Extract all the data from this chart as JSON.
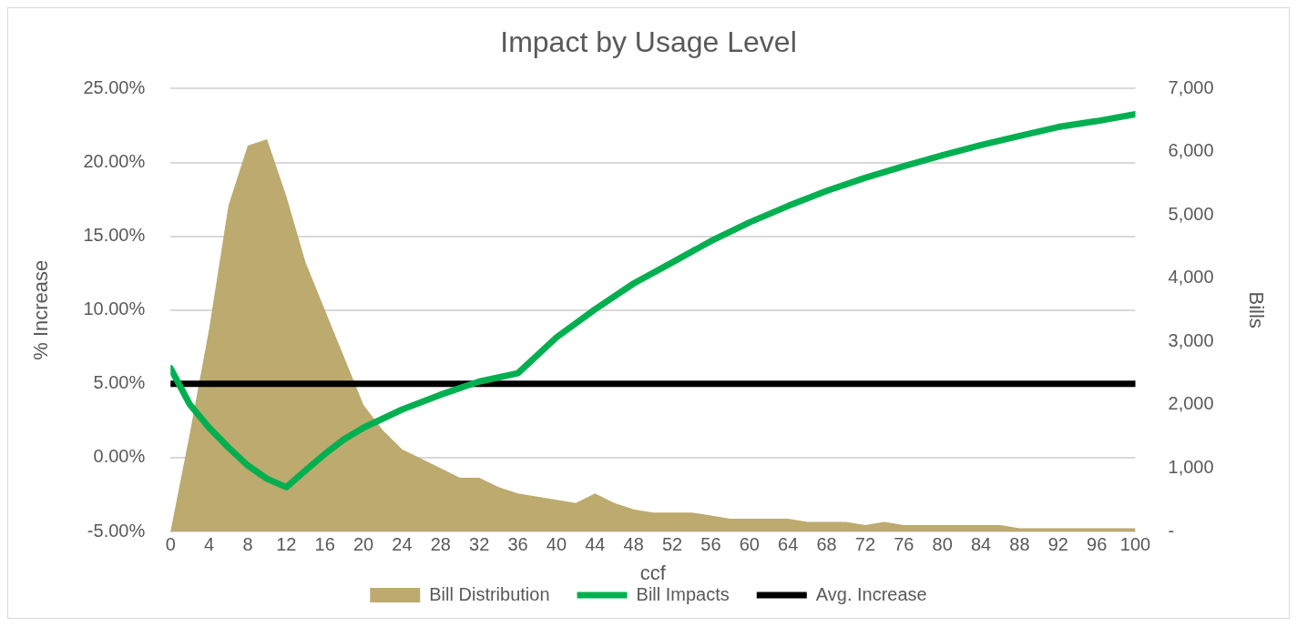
{
  "chart_data": {
    "type": "area",
    "title": "Impact by Usage Level",
    "xlabel": "ccf",
    "ylabel": "% Increase",
    "y2label": "Bills",
    "xlim": [
      0,
      100
    ],
    "xticks": [
      0,
      4,
      8,
      12,
      16,
      20,
      24,
      28,
      32,
      36,
      40,
      44,
      48,
      52,
      56,
      60,
      64,
      68,
      72,
      76,
      80,
      84,
      88,
      92,
      96,
      100
    ],
    "ylim": [
      -5,
      25
    ],
    "yticks": [
      {
        "value": -5,
        "label": "-5.00%"
      },
      {
        "value": 0,
        "label": "0.00%"
      },
      {
        "value": 5,
        "label": "5.00%"
      },
      {
        "value": 10,
        "label": "10.00%"
      },
      {
        "value": 15,
        "label": "15.00%"
      },
      {
        "value": 20,
        "label": "20.00%"
      },
      {
        "value": 25,
        "label": "25.00%"
      }
    ],
    "y2lim": [
      0,
      7000
    ],
    "y2ticks": [
      {
        "value": 0,
        "label": "-"
      },
      {
        "value": 1000,
        "label": "1,000"
      },
      {
        "value": 2000,
        "label": "2,000"
      },
      {
        "value": 3000,
        "label": "3,000"
      },
      {
        "value": 4000,
        "label": "4,000"
      },
      {
        "value": 5000,
        "label": "5,000"
      },
      {
        "value": 6000,
        "label": "6,000"
      },
      {
        "value": 7000,
        "label": "7,000"
      }
    ],
    "grid": "y",
    "legend": "bottom",
    "series": [
      {
        "name": "Bill Distribution",
        "type": "area",
        "axis": "y2",
        "color": "#bcaa6e",
        "x": [
          0,
          2,
          4,
          6,
          8,
          10,
          12,
          14,
          16,
          18,
          20,
          22,
          24,
          26,
          28,
          30,
          32,
          34,
          36,
          38,
          40,
          42,
          44,
          46,
          48,
          50,
          52,
          54,
          56,
          58,
          60,
          62,
          64,
          66,
          68,
          70,
          72,
          74,
          76,
          78,
          80,
          82,
          84,
          86,
          88,
          90,
          92,
          94,
          96,
          98,
          100
        ],
        "values": [
          0,
          1550,
          3200,
          5150,
          6100,
          6200,
          5300,
          4250,
          3500,
          2750,
          2000,
          1600,
          1300,
          1150,
          1000,
          850,
          850,
          700,
          600,
          550,
          500,
          450,
          600,
          450,
          350,
          300,
          300,
          300,
          250,
          200,
          200,
          200,
          200,
          150,
          150,
          150,
          100,
          150,
          100,
          100,
          100,
          100,
          100,
          100,
          50,
          50,
          50,
          50,
          50,
          50,
          50
        ]
      },
      {
        "name": "Bill Impacts",
        "type": "line",
        "color": "#00b050",
        "x": [
          0,
          2,
          4,
          6,
          8,
          10,
          12,
          14,
          16,
          18,
          20,
          24,
          28,
          32,
          36,
          40,
          44,
          48,
          52,
          56,
          60,
          64,
          68,
          72,
          76,
          80,
          84,
          88,
          92,
          96,
          100
        ],
        "values": [
          6.05,
          3.6,
          2.03,
          0.69,
          -0.53,
          -1.43,
          -2.0,
          -0.86,
          0.25,
          1.25,
          2.03,
          3.26,
          4.27,
          5.16,
          5.72,
          8.15,
          10.05,
          11.8,
          13.23,
          14.67,
          15.94,
          17.05,
          18.07,
          18.96,
          19.75,
          20.48,
          21.18,
          21.8,
          22.4,
          22.8,
          23.27
        ]
      },
      {
        "name": "Avg. Increase",
        "type": "line",
        "color": "#000000",
        "x": [
          0,
          100
        ],
        "values": [
          5,
          5
        ]
      }
    ]
  }
}
